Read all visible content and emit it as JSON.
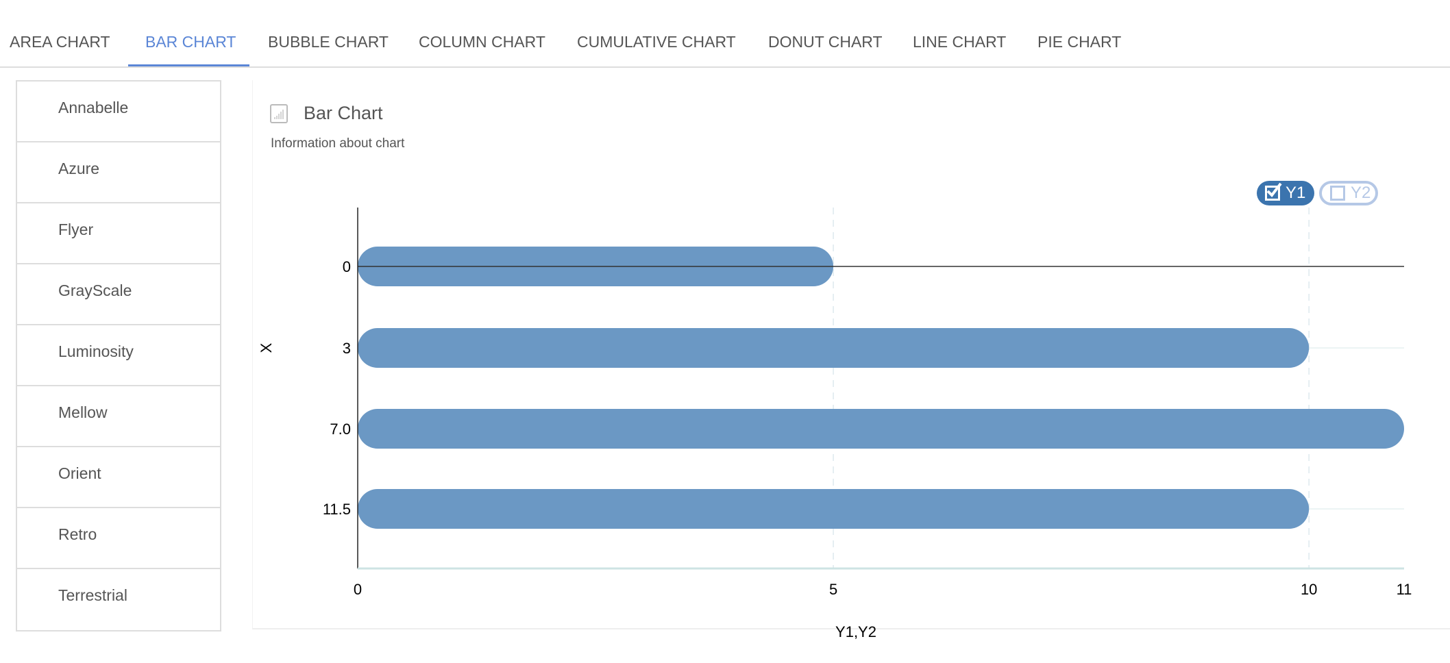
{
  "tabs": [
    {
      "label": "AREA CHART",
      "active": false
    },
    {
      "label": "BAR CHART",
      "active": true
    },
    {
      "label": "BUBBLE CHART",
      "active": false
    },
    {
      "label": "COLUMN CHART",
      "active": false
    },
    {
      "label": "CUMULATIVE CHART",
      "active": false
    },
    {
      "label": "DONUT CHART",
      "active": false
    },
    {
      "label": "LINE CHART",
      "active": false
    },
    {
      "label": "PIE CHART",
      "active": false
    }
  ],
  "sidebar": {
    "items": [
      "Annabelle",
      "Azure",
      "Flyer",
      "GrayScale",
      "Luminosity",
      "Mellow",
      "Orient",
      "Retro",
      "Terrestrial"
    ]
  },
  "panel": {
    "title": "Bar Chart",
    "subtitle": "Information about chart",
    "title_icon": "bar-chart-icon"
  },
  "colors": {
    "accent": "#5b86d6",
    "bar": "#6b98c4",
    "legend_active": "#3b74ae",
    "legend_inactive": "#b5c8e6"
  },
  "chart_data": {
    "type": "bar",
    "orientation": "horizontal",
    "categories": [
      "0",
      "3",
      "7.0",
      "11.5"
    ],
    "series": [
      {
        "name": "Y1",
        "values": [
          5,
          10,
          11,
          10
        ],
        "visible": true
      },
      {
        "name": "Y2",
        "visible": false
      }
    ],
    "xlabel": "Y1,Y2",
    "ylabel": "X",
    "xlim": [
      0,
      11
    ],
    "xticks": [
      "0",
      "5",
      "10",
      "11"
    ],
    "legend": "top-right",
    "grid": true
  }
}
